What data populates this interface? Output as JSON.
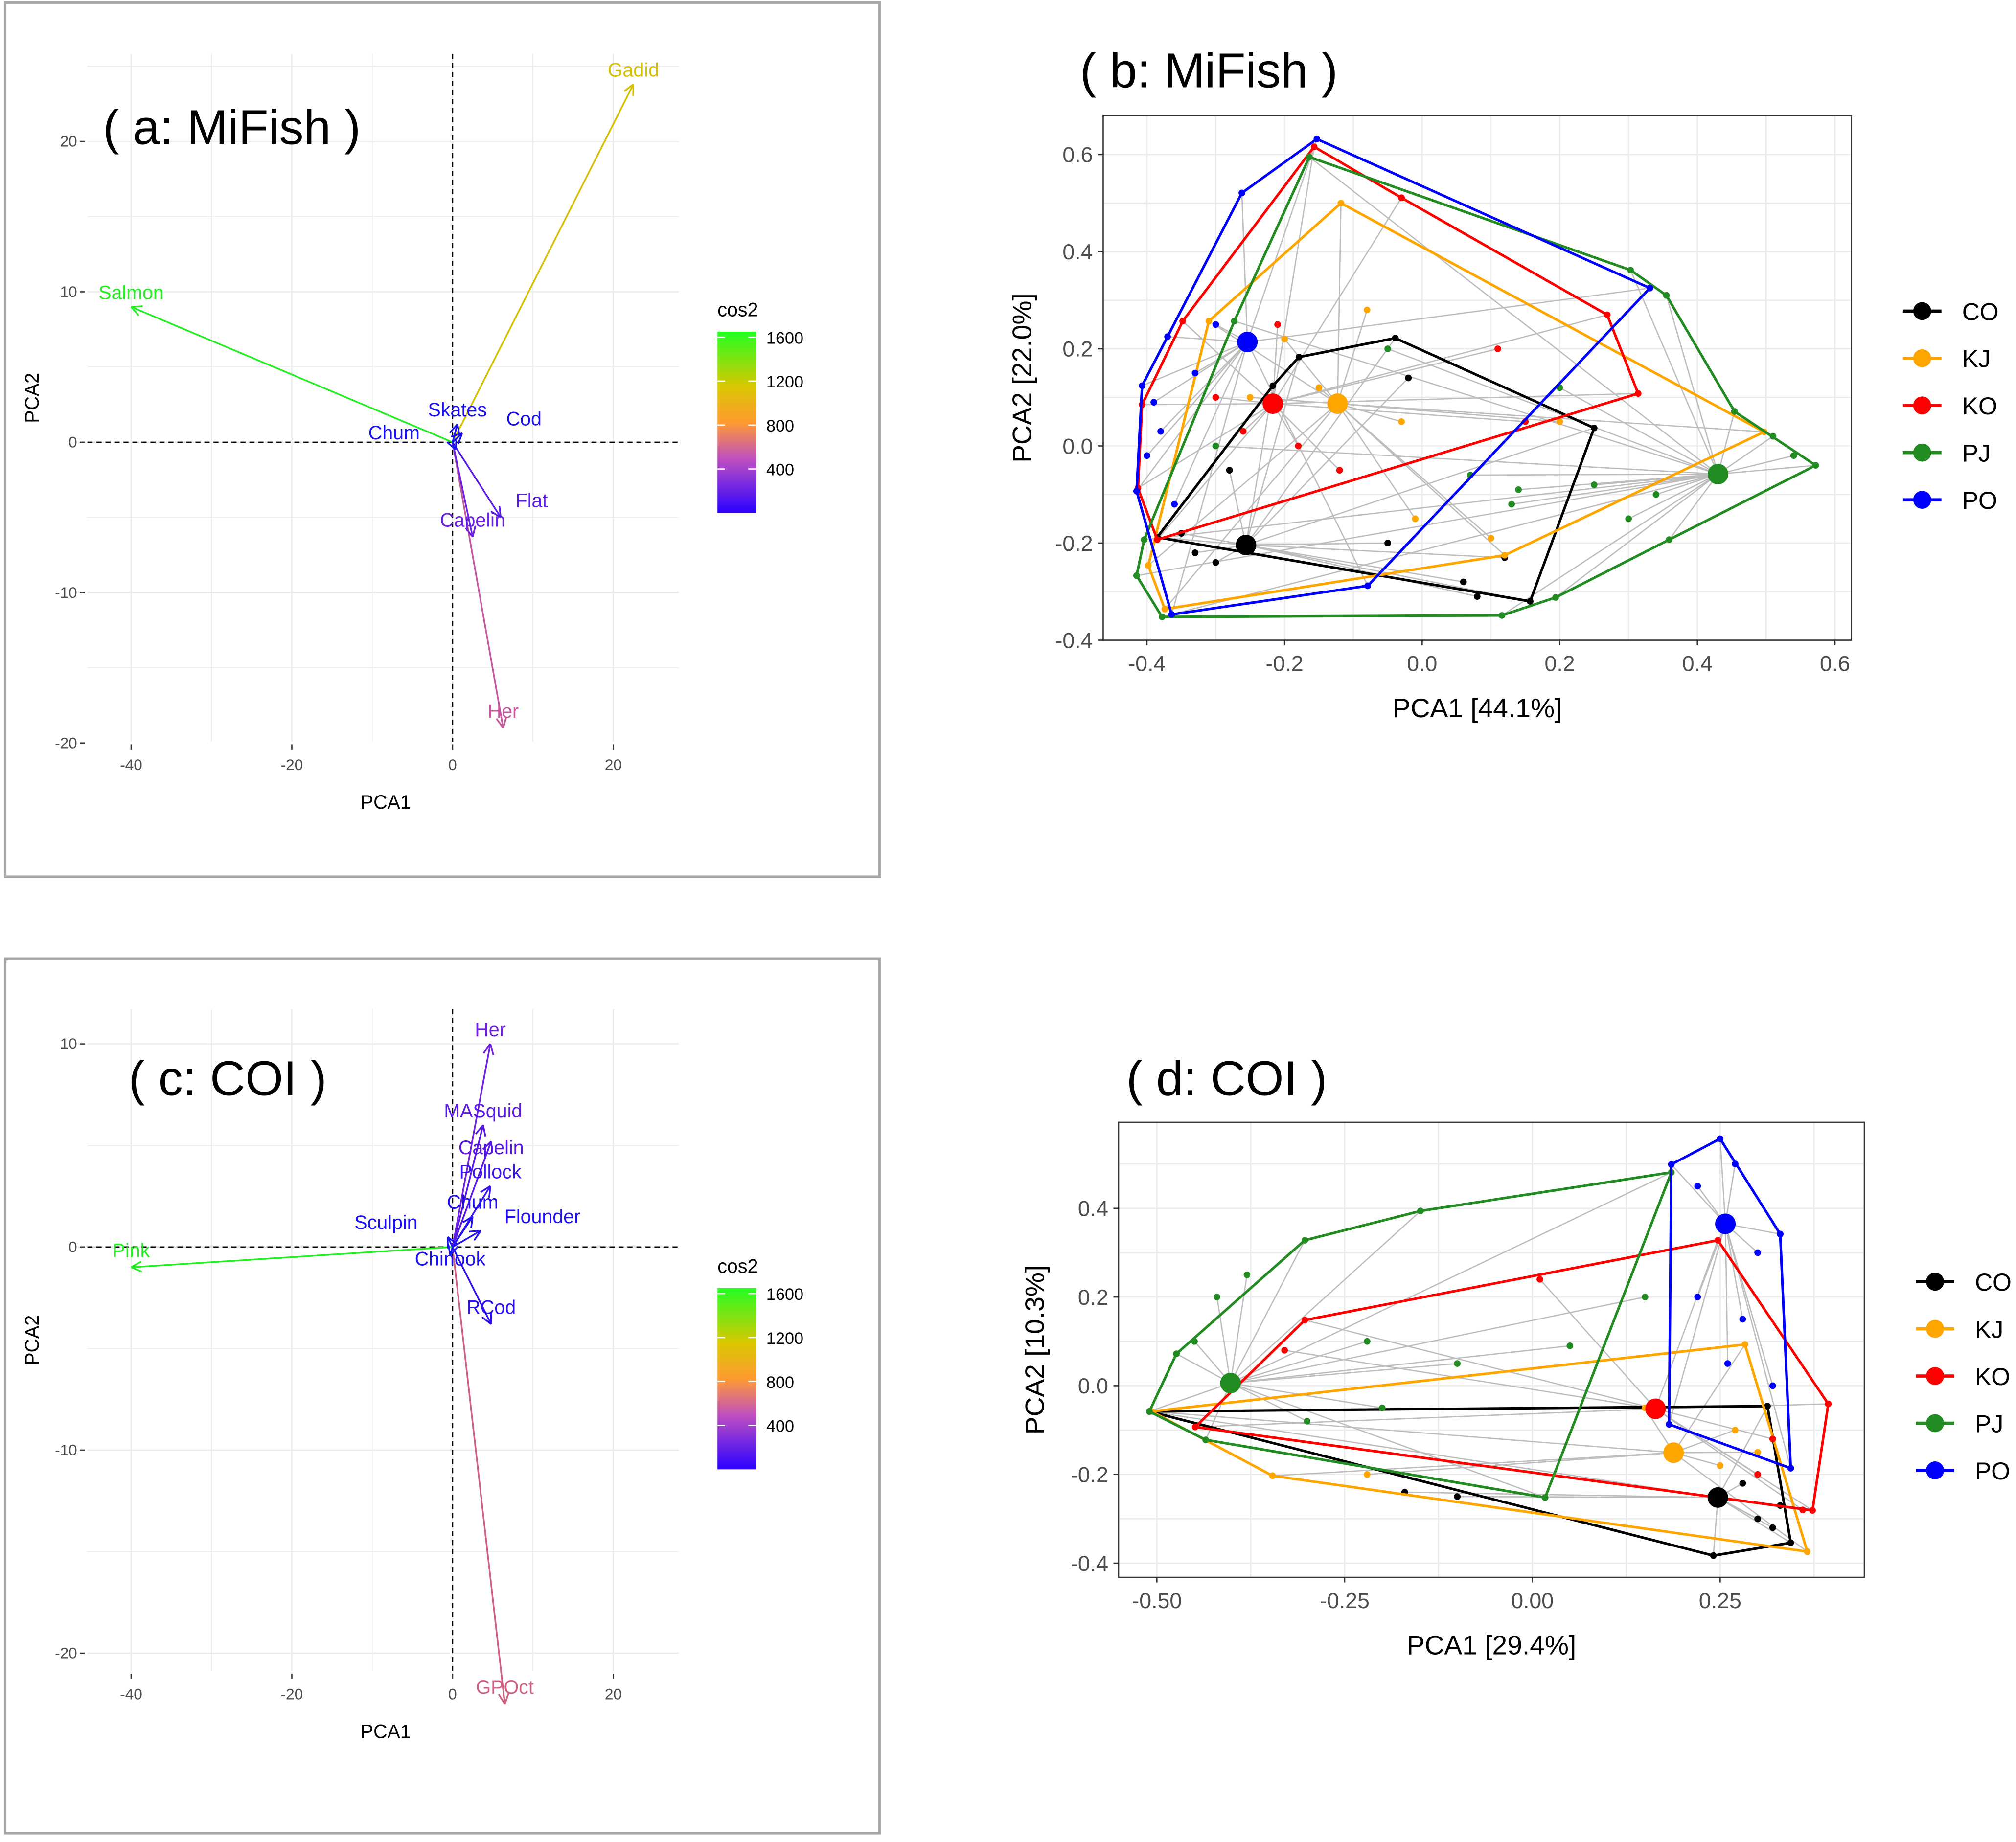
{
  "chart_data": [
    {
      "id": "a",
      "type": "biplot",
      "title": "( a: MiFish )",
      "xlabel": "PCA1",
      "ylabel": "PCA2",
      "xlim": [
        -45.4,
        28.2
      ],
      "ylim": [
        -20.5,
        25.8
      ],
      "xticks": [
        -40,
        -20,
        0,
        20
      ],
      "yticks": [
        -20,
        -10,
        0,
        10,
        20
      ],
      "legend": {
        "title": "cos2",
        "ticks": [
          400,
          800,
          1200,
          1600
        ],
        "placement": "right"
      },
      "arrows": [
        {
          "label": "Salmon",
          "x": -40,
          "y": 9,
          "color": "#22ee22"
        },
        {
          "label": "Gadid",
          "x": 22.5,
          "y": 23.8,
          "color": "#d4c000"
        },
        {
          "label": "Her",
          "x": 6.3,
          "y": -19,
          "color": "#c8589e"
        },
        {
          "label": "Capelin",
          "x": 2.5,
          "y": -6.3,
          "color": "#6a22e0"
        },
        {
          "label": "Flat",
          "x": 6,
          "y": -5,
          "color": "#5a1ee6"
        },
        {
          "label": "Skates",
          "x": 0.6,
          "y": 1.2,
          "color": "#1a10f0"
        },
        {
          "label": "Cod",
          "x": 1.2,
          "y": 0.6,
          "color": "#1a10f0"
        },
        {
          "label": "Chum",
          "x": 0.4,
          "y": -0.5,
          "color": "#1a10f0"
        }
      ]
    },
    {
      "id": "b",
      "type": "scatter",
      "title": "( b: MiFish )",
      "xlabel": "PCA1 [44.1%]",
      "ylabel": "PCA2 [22.0%]",
      "xlim": [
        -0.4636,
        0.624
      ],
      "ylim": [
        -0.4,
        0.68
      ],
      "xticks": [
        -0.4,
        -0.2,
        0.0,
        0.2,
        0.4,
        0.6
      ],
      "yticks": [
        -0.4,
        -0.2,
        0.0,
        0.2,
        0.4,
        0.6
      ],
      "tick_labels_x": [
        "-0.4",
        "-0.2",
        "0.0",
        "0.2",
        "0.4",
        "0.6"
      ],
      "tick_labels_y": [
        "-0.4",
        "-0.2",
        "0.0",
        "0.2",
        "0.4",
        "0.6"
      ],
      "legend_placement": "right",
      "groups": [
        {
          "name": "CO",
          "color": "#000000",
          "centroid": [
            -0.256,
            -0.204
          ],
          "hull": [
            [
              -0.179,
              0.183
            ],
            [
              -0.039,
              0.222
            ],
            [
              0.25,
              0.037
            ],
            [
              0.157,
              -0.32
            ],
            [
              -0.385,
              -0.188
            ],
            [
              -0.217,
              0.124
            ]
          ],
          "points": [
            [
              -0.33,
              -0.22
            ],
            [
              -0.3,
              -0.24
            ],
            [
              -0.05,
              -0.2
            ],
            [
              0.06,
              -0.28
            ],
            [
              0.08,
              -0.31
            ],
            [
              -0.02,
              0.14
            ],
            [
              -0.28,
              -0.05
            ],
            [
              -0.35,
              -0.18
            ],
            [
              0.12,
              -0.23
            ]
          ]
        },
        {
          "name": "KJ",
          "color": "#FFA500",
          "centroid": [
            -0.123,
            0.087
          ],
          "hull": [
            [
              -0.118,
              0.5
            ],
            [
              0.497,
              0.029
            ],
            [
              0.12,
              -0.225
            ],
            [
              -0.374,
              -0.336
            ],
            [
              -0.398,
              -0.246
            ],
            [
              -0.31,
              0.257
            ]
          ],
          "points": [
            [
              -0.2,
              0.22
            ],
            [
              -0.08,
              0.28
            ],
            [
              -0.03,
              0.05
            ],
            [
              0.1,
              -0.19
            ],
            [
              -0.01,
              -0.15
            ],
            [
              -0.25,
              0.1
            ],
            [
              0.2,
              0.05
            ],
            [
              -0.15,
              0.12
            ]
          ]
        },
        {
          "name": "KO",
          "color": "#FF0000",
          "centroid": [
            -0.217,
            0.087
          ],
          "hull": [
            [
              -0.157,
              0.616
            ],
            [
              -0.03,
              0.511
            ],
            [
              0.269,
              0.27
            ],
            [
              0.314,
              0.108
            ],
            [
              -0.385,
              -0.193
            ],
            [
              -0.413,
              -0.087
            ],
            [
              -0.407,
              0.085
            ],
            [
              -0.348,
              0.257
            ]
          ],
          "points": [
            [
              -0.21,
              0.25
            ],
            [
              -0.18,
              0.0
            ],
            [
              -0.12,
              -0.05
            ],
            [
              0.11,
              0.2
            ],
            [
              0.15,
              0.05
            ],
            [
              -0.3,
              0.1
            ],
            [
              -0.26,
              0.03
            ]
          ]
        },
        {
          "name": "PJ",
          "color": "#228B22",
          "centroid": [
            0.43,
            -0.058
          ],
          "hull": [
            [
              -0.164,
              0.595
            ],
            [
              0.303,
              0.362
            ],
            [
              0.355,
              0.31
            ],
            [
              0.454,
              0.071
            ],
            [
              0.572,
              -0.04
            ],
            [
              0.359,
              -0.193
            ],
            [
              0.194,
              -0.312
            ],
            [
              0.116,
              -0.349
            ],
            [
              -0.378,
              -0.352
            ],
            [
              -0.415,
              -0.267
            ],
            [
              -0.404,
              -0.193
            ],
            [
              -0.273,
              0.257
            ]
          ],
          "points": [
            [
              0.14,
              -0.09
            ],
            [
              0.13,
              -0.12
            ],
            [
              0.25,
              -0.08
            ],
            [
              0.3,
              -0.15
            ],
            [
              0.07,
              -0.06
            ],
            [
              0.2,
              0.12
            ],
            [
              -0.05,
              0.2
            ],
            [
              0.51,
              0.02
            ],
            [
              0.54,
              -0.02
            ],
            [
              -0.3,
              0.0
            ],
            [
              0.34,
              -0.1
            ]
          ]
        },
        {
          "name": "PO",
          "color": "#0000FF",
          "centroid": [
            -0.254,
            0.214
          ],
          "hull": [
            [
              -0.153,
              0.632
            ],
            [
              0.331,
              0.325
            ],
            [
              -0.079,
              -0.288
            ],
            [
              -0.364,
              -0.347
            ],
            [
              -0.415,
              -0.093
            ],
            [
              -0.407,
              0.124
            ],
            [
              -0.37,
              0.225
            ],
            [
              -0.262,
              0.521
            ]
          ],
          "points": [
            [
              -0.39,
              0.09
            ],
            [
              -0.38,
              0.03
            ],
            [
              -0.33,
              0.15
            ],
            [
              -0.3,
              0.25
            ],
            [
              -0.4,
              -0.02
            ],
            [
              -0.36,
              -0.12
            ]
          ]
        }
      ]
    },
    {
      "id": "c",
      "type": "biplot",
      "title": "( c: COI )",
      "xlabel": "PCA1",
      "ylabel": "PCA2",
      "xlim": [
        -45.4,
        28.2
      ],
      "ylim": [
        -20.9,
        11.7
      ],
      "xticks": [
        -40,
        -20,
        0,
        20
      ],
      "yticks": [
        -20,
        -10,
        0,
        10
      ],
      "legend": {
        "title": "cos2",
        "ticks": [
          400,
          800,
          1200,
          1600
        ],
        "placement": "right"
      },
      "arrows": [
        {
          "label": "Pink",
          "x": -40,
          "y": -1,
          "color": "#22ee22"
        },
        {
          "label": "GPOct",
          "x": 6.5,
          "y": -22.5,
          "color": "#d06080"
        },
        {
          "label": "Her",
          "x": 4.7,
          "y": 10,
          "color": "#7020e0"
        },
        {
          "label": "MASquid",
          "x": 3.8,
          "y": 6,
          "color": "#5a18e8"
        },
        {
          "label": "Capelin",
          "x": 4.8,
          "y": 5.2,
          "color": "#5a18e8"
        },
        {
          "label": "Pollock",
          "x": 4.7,
          "y": 3,
          "color": "#3a12ee"
        },
        {
          "label": "Chum",
          "x": 2.5,
          "y": 1.5,
          "color": "#2010f2"
        },
        {
          "label": "Flounder",
          "x": 3.5,
          "y": 0.8,
          "color": "#2010f2"
        },
        {
          "label": "RCod",
          "x": 4.8,
          "y": -3.8,
          "color": "#2a10f0"
        },
        {
          "label": "Sculpin",
          "x": -0.6,
          "y": 0.5,
          "color": "#1a10f4"
        },
        {
          "label": "Chinook",
          "x": -0.3,
          "y": -0.4,
          "color": "#1a10f4"
        }
      ]
    },
    {
      "id": "d",
      "type": "scatter",
      "title": "( d: COI )",
      "xlabel": "PCA1 [29.4%]",
      "ylabel": "PCA2 [10.3%]",
      "xlim": [
        -0.551,
        0.442
      ],
      "ylim": [
        -0.432,
        0.594
      ],
      "xticks": [
        -0.5,
        -0.25,
        0.0,
        0.25
      ],
      "yticks": [
        -0.4,
        -0.2,
        0.0,
        0.2,
        0.4
      ],
      "tick_labels_x": [
        "-0.50",
        "-0.25",
        "0.00",
        "0.25"
      ],
      "tick_labels_y": [
        "-0.4",
        "-0.2",
        "0.0",
        "0.2",
        "0.4"
      ],
      "legend_placement": "right",
      "groups": [
        {
          "name": "CO",
          "color": "#000000",
          "centroid": [
            0.247,
            -0.252
          ],
          "hull": [
            [
              -0.51,
              -0.058
            ],
            [
              0.313,
              -0.046
            ],
            [
              0.344,
              -0.354
            ],
            [
              0.241,
              -0.383
            ]
          ],
          "points": [
            [
              0.3,
              -0.3
            ],
            [
              0.32,
              -0.32
            ],
            [
              0.28,
              -0.22
            ],
            [
              0.33,
              -0.27
            ],
            [
              -0.17,
              -0.24
            ],
            [
              -0.1,
              -0.25
            ]
          ]
        },
        {
          "name": "KJ",
          "color": "#FFA500",
          "centroid": [
            0.188,
            -0.151
          ],
          "hull": [
            [
              0.283,
              0.093
            ],
            [
              0.366,
              -0.374
            ],
            [
              -0.346,
              -0.203
            ],
            [
              -0.507,
              -0.058
            ]
          ],
          "points": [
            [
              0.27,
              -0.1
            ],
            [
              0.3,
              -0.15
            ],
            [
              0.25,
              -0.18
            ],
            [
              -0.22,
              -0.2
            ],
            [
              0.15,
              -0.05
            ]
          ]
        },
        {
          "name": "KO",
          "color": "#FF0000",
          "centroid": [
            0.164,
            -0.052
          ],
          "hull": [
            [
              0.247,
              0.328
            ],
            [
              0.394,
              -0.041
            ],
            [
              0.373,
              -0.281
            ],
            [
              -0.449,
              -0.093
            ],
            [
              -0.303,
              0.148
            ]
          ],
          "points": [
            [
              0.01,
              0.24
            ],
            [
              0.3,
              -0.2
            ],
            [
              0.36,
              -0.28
            ],
            [
              -0.33,
              0.08
            ],
            [
              0.32,
              -0.12
            ]
          ]
        },
        {
          "name": "PJ",
          "color": "#228B22",
          "centroid": [
            -0.402,
            0.006
          ],
          "hull": [
            [
              0.185,
              0.481
            ],
            [
              0.017,
              -0.252
            ],
            [
              -0.435,
              -0.122
            ],
            [
              -0.51,
              -0.058
            ],
            [
              -0.474,
              0.072
            ],
            [
              -0.303,
              0.328
            ],
            [
              -0.149,
              0.394
            ]
          ],
          "points": [
            [
              -0.45,
              0.1
            ],
            [
              -0.42,
              0.2
            ],
            [
              -0.38,
              0.25
            ],
            [
              -0.22,
              0.1
            ],
            [
              -0.1,
              0.05
            ],
            [
              0.05,
              0.09
            ],
            [
              -0.3,
              -0.08
            ],
            [
              -0.2,
              -0.05
            ],
            [
              0.15,
              0.2
            ]
          ]
        },
        {
          "name": "PO",
          "color": "#0000FF",
          "centroid": [
            0.257,
            0.365
          ],
          "hull": [
            [
              0.25,
              0.557
            ],
            [
              0.33,
              0.342
            ],
            [
              0.344,
              -0.186
            ],
            [
              0.182,
              -0.087
            ],
            [
              0.185,
              0.499
            ]
          ],
          "points": [
            [
              0.22,
              0.45
            ],
            [
              0.27,
              0.5
            ],
            [
              0.3,
              0.3
            ],
            [
              0.28,
              0.15
            ],
            [
              0.32,
              0.0
            ],
            [
              0.22,
              0.2
            ],
            [
              0.26,
              0.05
            ]
          ]
        }
      ]
    }
  ]
}
